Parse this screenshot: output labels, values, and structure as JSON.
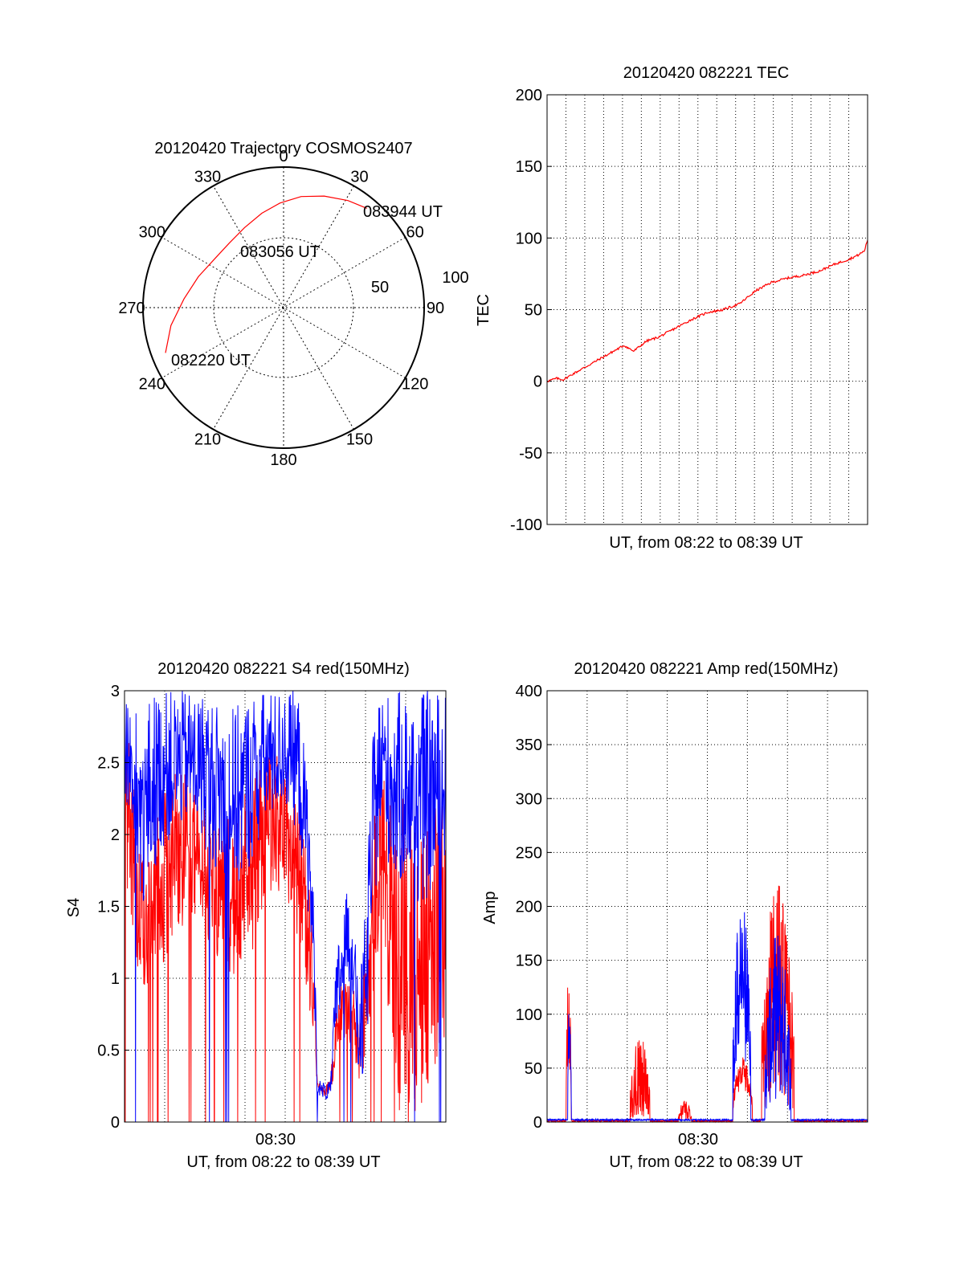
{
  "colors": {
    "red": "#ff0000",
    "blue": "#0000ff",
    "axis": "#000000",
    "grid": "#000000",
    "background": "#ffffff"
  },
  "chart_data": [
    {
      "type": "polar",
      "title": "20120420 Trajectory COSMOS2407",
      "angle_ticks": [
        "0",
        "30",
        "60",
        "90",
        "120",
        "150",
        "180",
        "210",
        "240",
        "270",
        "300",
        "330"
      ],
      "radial_labels": [
        "50",
        "100"
      ],
      "elevation_range": [
        0,
        90
      ],
      "grid": true,
      "trajectory": {
        "color": "red",
        "points": [
          {
            "az": 249,
            "el": 9
          },
          {
            "az": 261,
            "el": 17
          },
          {
            "az": 275,
            "el": 26
          },
          {
            "az": 290,
            "el": 32
          },
          {
            "az": 306,
            "el": 36
          },
          {
            "az": 320,
            "el": 36
          },
          {
            "az": 334,
            "el": 33
          },
          {
            "az": 347,
            "el": 28
          },
          {
            "az": 358,
            "el": 23
          },
          {
            "az": 9,
            "el": 18
          },
          {
            "az": 20,
            "el": 14
          },
          {
            "az": 31,
            "el": 10
          },
          {
            "az": 40,
            "el": 7
          }
        ]
      },
      "annotations": [
        {
          "text": "083944 UT",
          "az": 40,
          "el": 7
        },
        {
          "text": "083056 UT",
          "az": 331,
          "el": 47
        },
        {
          "text": "082220 UT",
          "az": 249,
          "el": 9
        }
      ]
    },
    {
      "type": "line",
      "title": "20120420 082221 TEC",
      "xlabel": "UT, from 08:22 to 08:39 UT",
      "ylabel": "TEC",
      "xlim": [
        0,
        1
      ],
      "ylim": [
        -100,
        200
      ],
      "yticks": [
        -100,
        -50,
        0,
        50,
        100,
        150,
        200
      ],
      "grid": true,
      "series": [
        {
          "color": "red",
          "x": [
            0,
            0.03,
            0.05,
            0.08,
            0.12,
            0.16,
            0.2,
            0.24,
            0.27,
            0.31,
            0.35,
            0.4,
            0.45,
            0.5,
            0.55,
            0.6,
            0.65,
            0.7,
            0.75,
            0.8,
            0.85,
            0.9,
            0.94,
            0.97,
            0.99,
            1.0
          ],
          "y": [
            0,
            2,
            1,
            5,
            10,
            15,
            20,
            25,
            21,
            28,
            31,
            37,
            43,
            48,
            50,
            54,
            63,
            69,
            72,
            74,
            77,
            82,
            85,
            88,
            91,
            99
          ]
        }
      ]
    },
    {
      "type": "line",
      "title": "20120420 082221 S4 red(150MHz)",
      "xlabel": "UT, from 08:22 to 08:39 UT",
      "ylabel": "S4",
      "xtick_labels": [
        {
          "x": 0.47,
          "label": "08:30"
        }
      ],
      "ylim": [
        0,
        3
      ],
      "yticks": [
        0,
        0.5,
        1,
        1.5,
        2,
        2.5,
        3
      ],
      "grid": true,
      "series": [
        {
          "color": "red",
          "envelope_x": [
            0,
            0.02,
            0.04,
            0.06,
            0.08,
            0.1,
            0.12,
            0.16,
            0.2,
            0.25,
            0.3,
            0.35,
            0.4,
            0.45,
            0.5,
            0.54,
            0.57,
            0.59,
            0.6,
            0.62,
            0.64,
            0.66,
            0.69,
            0.71,
            0.73,
            0.75,
            0.77,
            0.79,
            0.8,
            0.82,
            0.85,
            0.88,
            0.9,
            0.93,
            0.96,
            1.0
          ],
          "lower": [
            1.8,
            1.4,
            1.0,
            0.9,
            1.0,
            1.2,
            1.1,
            1.3,
            1.4,
            1.3,
            1.1,
            1.0,
            1.2,
            1.6,
            1.6,
            1.2,
            0.9,
            0.5,
            0.25,
            0.18,
            0.2,
            0.4,
            0.6,
            0.5,
            0.3,
            0.4,
            0.8,
            1.2,
            1.5,
            0.8,
            0.0,
            0.0,
            0.0,
            0.0,
            0.4,
            0.4
          ],
          "upper": [
            3.0,
            2.6,
            2.0,
            1.8,
            1.9,
            2.2,
            2.3,
            2.5,
            2.4,
            2.2,
            2.1,
            2.2,
            2.4,
            2.6,
            2.5,
            2.3,
            1.8,
            1.1,
            0.3,
            0.25,
            0.3,
            0.8,
            1.1,
            1.0,
            0.7,
            1.2,
            2.0,
            2.5,
            2.6,
            2.4,
            2.2,
            2.3,
            2.1,
            2.0,
            2.2,
            2.3
          ]
        },
        {
          "color": "blue",
          "envelope_x": [
            0,
            0.02,
            0.04,
            0.06,
            0.08,
            0.1,
            0.12,
            0.16,
            0.2,
            0.25,
            0.3,
            0.35,
            0.4,
            0.45,
            0.5,
            0.54,
            0.57,
            0.59,
            0.6,
            0.62,
            0.64,
            0.66,
            0.69,
            0.71,
            0.73,
            0.75,
            0.77,
            0.79,
            0.8,
            0.82,
            0.85,
            0.88,
            0.9,
            0.93,
            0.96,
            1.0
          ],
          "lower": [
            2.2,
            2.0,
            1.6,
            1.5,
            1.6,
            1.8,
            1.9,
            2.0,
            2.1,
            1.9,
            1.7,
            1.6,
            1.8,
            2.1,
            2.2,
            2.0,
            1.5,
            0.9,
            0.2,
            0.15,
            0.15,
            0.5,
            1.0,
            0.9,
            0.2,
            0.25,
            1.3,
            1.8,
            2.0,
            1.8,
            1.6,
            1.7,
            1.5,
            1.5,
            1.6,
            1.7
          ],
          "upper": [
            3.0,
            3.0,
            2.8,
            2.7,
            3.0,
            3.0,
            3.0,
            3.0,
            3.0,
            3.0,
            2.9,
            2.9,
            3.0,
            3.0,
            3.0,
            3.0,
            2.4,
            1.5,
            0.3,
            0.28,
            0.28,
            1.2,
            1.6,
            1.5,
            0.9,
            1.5,
            2.6,
            3.0,
            3.0,
            3.0,
            3.0,
            3.0,
            3.0,
            3.0,
            3.0,
            3.0
          ]
        }
      ]
    },
    {
      "type": "line",
      "title": "20120420 082221 Amp red(150MHz)",
      "xlabel": "UT, from 08:22 to 08:39 UT",
      "ylabel": "Amp",
      "xtick_labels": [
        {
          "x": 0.47,
          "label": "08:30"
        }
      ],
      "ylim": [
        0,
        400
      ],
      "yticks": [
        0,
        50,
        100,
        150,
        200,
        250,
        300,
        350,
        400
      ],
      "grid": true,
      "series": [
        {
          "color": "red",
          "bursts": [
            {
              "x0": 0.06,
              "x1": 0.075,
              "peak": 150,
              "base": 50
            },
            {
              "x0": 0.26,
              "x1": 0.32,
              "peak": 80,
              "base": 5
            },
            {
              "x0": 0.41,
              "x1": 0.45,
              "peak": 20,
              "base": 2
            },
            {
              "x0": 0.58,
              "x1": 0.64,
              "peak": 60,
              "base": 30
            },
            {
              "x0": 0.67,
              "x1": 0.77,
              "peak": 230,
              "base": 20
            }
          ]
        },
        {
          "color": "blue",
          "bursts": [
            {
              "x0": 0.065,
              "x1": 0.075,
              "peak": 120,
              "base": 60
            },
            {
              "x0": 0.58,
              "x1": 0.635,
              "peak": 212,
              "base": 60
            },
            {
              "x0": 0.68,
              "x1": 0.76,
              "peak": 180,
              "base": 20
            }
          ],
          "baseline": 2
        }
      ]
    }
  ]
}
